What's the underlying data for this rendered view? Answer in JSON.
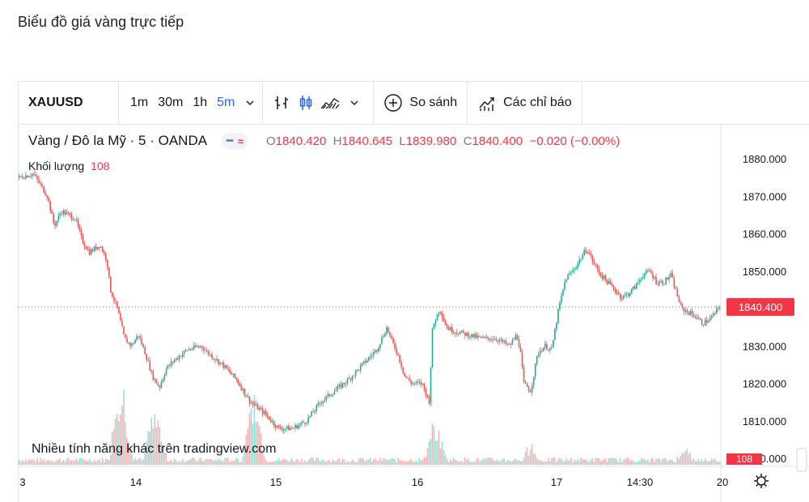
{
  "page": {
    "heading": "Biểu đồ giá vàng trực tiếp"
  },
  "toolbar": {
    "symbol": "XAUUSD",
    "intervals": [
      "1m",
      "30m",
      "1h",
      "5m"
    ],
    "active_interval": "5m",
    "compare_label": "So sánh",
    "indicators_label": "Các chỉ báo",
    "icons": [
      "bars-chart-icon",
      "candles-chart-icon",
      "area-chart-icon",
      "chevron-down-icon",
      "plus-circle-icon",
      "indicators-icon"
    ]
  },
  "legend": {
    "title": "Vàng / Đô la Mỹ · 5 · OANDA",
    "open_label": "O",
    "open": "1840.420",
    "high_label": "H",
    "high": "1840.645",
    "low_label": "L",
    "low": "1839.980",
    "close_label": "C",
    "close": "1840.400",
    "change": "−0.020 (−0.00%)",
    "volume_label": "Khối lượng",
    "volume": "108"
  },
  "watermark": "Nhiều tính năng khác trên tradingview.com",
  "colors": {
    "up": "#26a69a",
    "down": "#ef5350",
    "accent": "#2962ff",
    "price_tag": "#f23645"
  },
  "chart_data": {
    "type": "candlestick",
    "symbol": "XAUUSD",
    "ylim": [
      1800,
      1880
    ],
    "y_ticks": [
      "1880.000",
      "1870.000",
      "1860.000",
      "1850.000",
      "1840.000",
      "1830.000",
      "1820.000",
      "1810.000",
      "1800.000"
    ],
    "x_ticks": [
      "3",
      "14",
      "15",
      "16",
      "17",
      "14:30",
      "20"
    ],
    "last_price": "1840.400",
    "volume_tag": "108",
    "close_path": [
      [
        0,
        1875
      ],
      [
        0.02,
        1876
      ],
      [
        0.04,
        1870
      ],
      [
        0.05,
        1862
      ],
      [
        0.06,
        1866
      ],
      [
        0.08,
        1864
      ],
      [
        0.09,
        1858
      ],
      [
        0.1,
        1855
      ],
      [
        0.115,
        1857
      ],
      [
        0.125,
        1853
      ],
      [
        0.13,
        1845
      ],
      [
        0.14,
        1840
      ],
      [
        0.15,
        1832
      ],
      [
        0.16,
        1830
      ],
      [
        0.17,
        1833
      ],
      [
        0.18,
        1828
      ],
      [
        0.19,
        1822
      ],
      [
        0.2,
        1819
      ],
      [
        0.21,
        1824
      ],
      [
        0.22,
        1826
      ],
      [
        0.24,
        1829
      ],
      [
        0.26,
        1830
      ],
      [
        0.27,
        1828
      ],
      [
        0.29,
        1825
      ],
      [
        0.31,
        1821
      ],
      [
        0.33,
        1815
      ],
      [
        0.35,
        1812
      ],
      [
        0.37,
        1808
      ],
      [
        0.39,
        1808
      ],
      [
        0.41,
        1810
      ],
      [
        0.43,
        1815
      ],
      [
        0.45,
        1818
      ],
      [
        0.47,
        1821
      ],
      [
        0.49,
        1825
      ],
      [
        0.51,
        1829
      ],
      [
        0.525,
        1835
      ],
      [
        0.53,
        1832
      ],
      [
        0.54,
        1828
      ],
      [
        0.55,
        1822
      ],
      [
        0.56,
        1820
      ],
      [
        0.575,
        1820
      ],
      [
        0.585,
        1815
      ],
      [
        0.59,
        1835
      ],
      [
        0.6,
        1840
      ],
      [
        0.61,
        1835
      ],
      [
        0.62,
        1834
      ],
      [
        0.64,
        1833
      ],
      [
        0.66,
        1832
      ],
      [
        0.68,
        1832
      ],
      [
        0.7,
        1830
      ],
      [
        0.71,
        1833
      ],
      [
        0.715,
        1829
      ],
      [
        0.72,
        1820
      ],
      [
        0.73,
        1818
      ],
      [
        0.74,
        1828
      ],
      [
        0.75,
        1830
      ],
      [
        0.76,
        1829
      ],
      [
        0.77,
        1840
      ],
      [
        0.78,
        1848
      ],
      [
        0.79,
        1850
      ],
      [
        0.8,
        1853
      ],
      [
        0.81,
        1856
      ],
      [
        0.82,
        1852
      ],
      [
        0.83,
        1849
      ],
      [
        0.845,
        1846
      ],
      [
        0.86,
        1843
      ],
      [
        0.87,
        1844
      ],
      [
        0.88,
        1846
      ],
      [
        0.89,
        1849
      ],
      [
        0.9,
        1850
      ],
      [
        0.91,
        1847
      ],
      [
        0.92,
        1847
      ],
      [
        0.93,
        1849
      ],
      [
        0.935,
        1846
      ],
      [
        0.945,
        1840
      ],
      [
        0.955,
        1839
      ],
      [
        0.965,
        1838
      ],
      [
        0.975,
        1836
      ],
      [
        0.985,
        1837
      ],
      [
        1.0,
        1840.4
      ]
    ],
    "volume_spikes": [
      [
        0.14,
        1.0
      ],
      [
        0.15,
        0.85
      ],
      [
        0.19,
        0.8
      ],
      [
        0.2,
        0.5
      ],
      [
        0.33,
        0.9
      ],
      [
        0.34,
        0.7
      ],
      [
        0.59,
        0.45
      ],
      [
        0.6,
        0.35
      ],
      [
        0.73,
        0.25
      ],
      [
        0.95,
        0.2
      ]
    ]
  }
}
